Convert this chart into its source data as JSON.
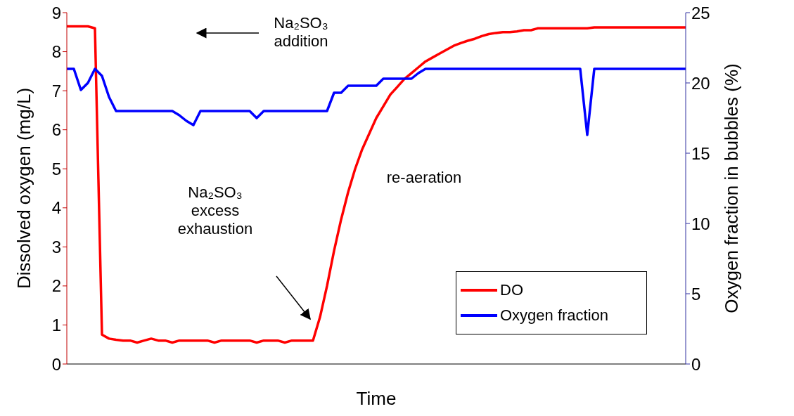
{
  "chart_data": {
    "type": "line",
    "xlabel": "Time",
    "ylabel": "Dissolved oxygen (mg/L)",
    "y2label": "Oxygen fraction in bubbles (%)",
    "categories": [
      null,
      null,
      null,
      null,
      null,
      null,
      null,
      null,
      null,
      null,
      null,
      null,
      null,
      null,
      null,
      null,
      null,
      null,
      null,
      null,
      null,
      null,
      null,
      null,
      null,
      null,
      null,
      null,
      null,
      null,
      null,
      null,
      null,
      null,
      null,
      null,
      null,
      null,
      null,
      null,
      null,
      null,
      null,
      null,
      null,
      null,
      null,
      null,
      null,
      null,
      null,
      null,
      null,
      null,
      null,
      null,
      null,
      null,
      null,
      null,
      null,
      null,
      null,
      null,
      null,
      null,
      null,
      null,
      null,
      null,
      null,
      null,
      null,
      null,
      null,
      null,
      null,
      null,
      null,
      null,
      null,
      null,
      null,
      null,
      null,
      null,
      null,
      null,
      null
    ],
    "ylim": [
      0,
      9
    ],
    "yticks": [
      0,
      1,
      2,
      3,
      4,
      5,
      6,
      7,
      8,
      9
    ],
    "y2lim": [
      0,
      25
    ],
    "y2ticks": [
      0,
      5,
      10,
      15,
      20,
      25
    ],
    "grid": false,
    "legend": "bottom right",
    "marker": "none",
    "line_style": "solid",
    "series": [
      {
        "name": "DO",
        "color": "#ff0000",
        "values": [
          8.65,
          8.65,
          8.65,
          8.65,
          8.6,
          0.75,
          0.65,
          0.62,
          0.6,
          0.6,
          0.55,
          0.6,
          0.65,
          0.6,
          0.6,
          0.55,
          0.6,
          0.6,
          0.6,
          0.6,
          0.6,
          0.55,
          0.6,
          0.6,
          0.6,
          0.6,
          0.6,
          0.55,
          0.6,
          0.6,
          0.6,
          0.55,
          0.6,
          0.6,
          0.6,
          0.6,
          1.2,
          2.0,
          2.9,
          3.7,
          4.4,
          5.0,
          5.5,
          5.9,
          6.3,
          6.6,
          6.9,
          7.1,
          7.3,
          7.45,
          7.6,
          7.75,
          7.85,
          7.95,
          8.05,
          8.15,
          8.22,
          8.28,
          8.33,
          8.4,
          8.45,
          8.48,
          8.5,
          8.5,
          8.52,
          8.55,
          8.55,
          8.6,
          8.6,
          8.6,
          8.6,
          8.6,
          8.6,
          8.6,
          8.6,
          8.62,
          8.62,
          8.62,
          8.62,
          8.62,
          8.62,
          8.62,
          8.62,
          8.62,
          8.62,
          8.62,
          8.62,
          8.62,
          8.62
        ]
      },
      {
        "name": "Oxygen fraction",
        "color": "#0000ff",
        "axis": "y2",
        "values": [
          21,
          21,
          19.5,
          20,
          21,
          20.5,
          19,
          18,
          18,
          18,
          18,
          18,
          18,
          18,
          18,
          18,
          17.7,
          17.3,
          17,
          18,
          18,
          18,
          18,
          18,
          18,
          18,
          18,
          17.5,
          18,
          18,
          18,
          18,
          18,
          18,
          18,
          18,
          18,
          18,
          19.3,
          19.3,
          19.8,
          19.8,
          19.8,
          19.8,
          19.8,
          20.3,
          20.3,
          20.3,
          20.3,
          20.3,
          20.7,
          21,
          21,
          21,
          21,
          21,
          21,
          21,
          21,
          21,
          21,
          21,
          21,
          21,
          21,
          21,
          21,
          21,
          21,
          21,
          21,
          21,
          21,
          21,
          16.3,
          21,
          21,
          21,
          21,
          21,
          21,
          21,
          21,
          21,
          21,
          21,
          21,
          21,
          21
        ]
      }
    ],
    "annotations": [
      "Na₂SO₃ addition",
      "Na₂SO₃ excess exhaustion",
      "re-aeration"
    ]
  }
}
